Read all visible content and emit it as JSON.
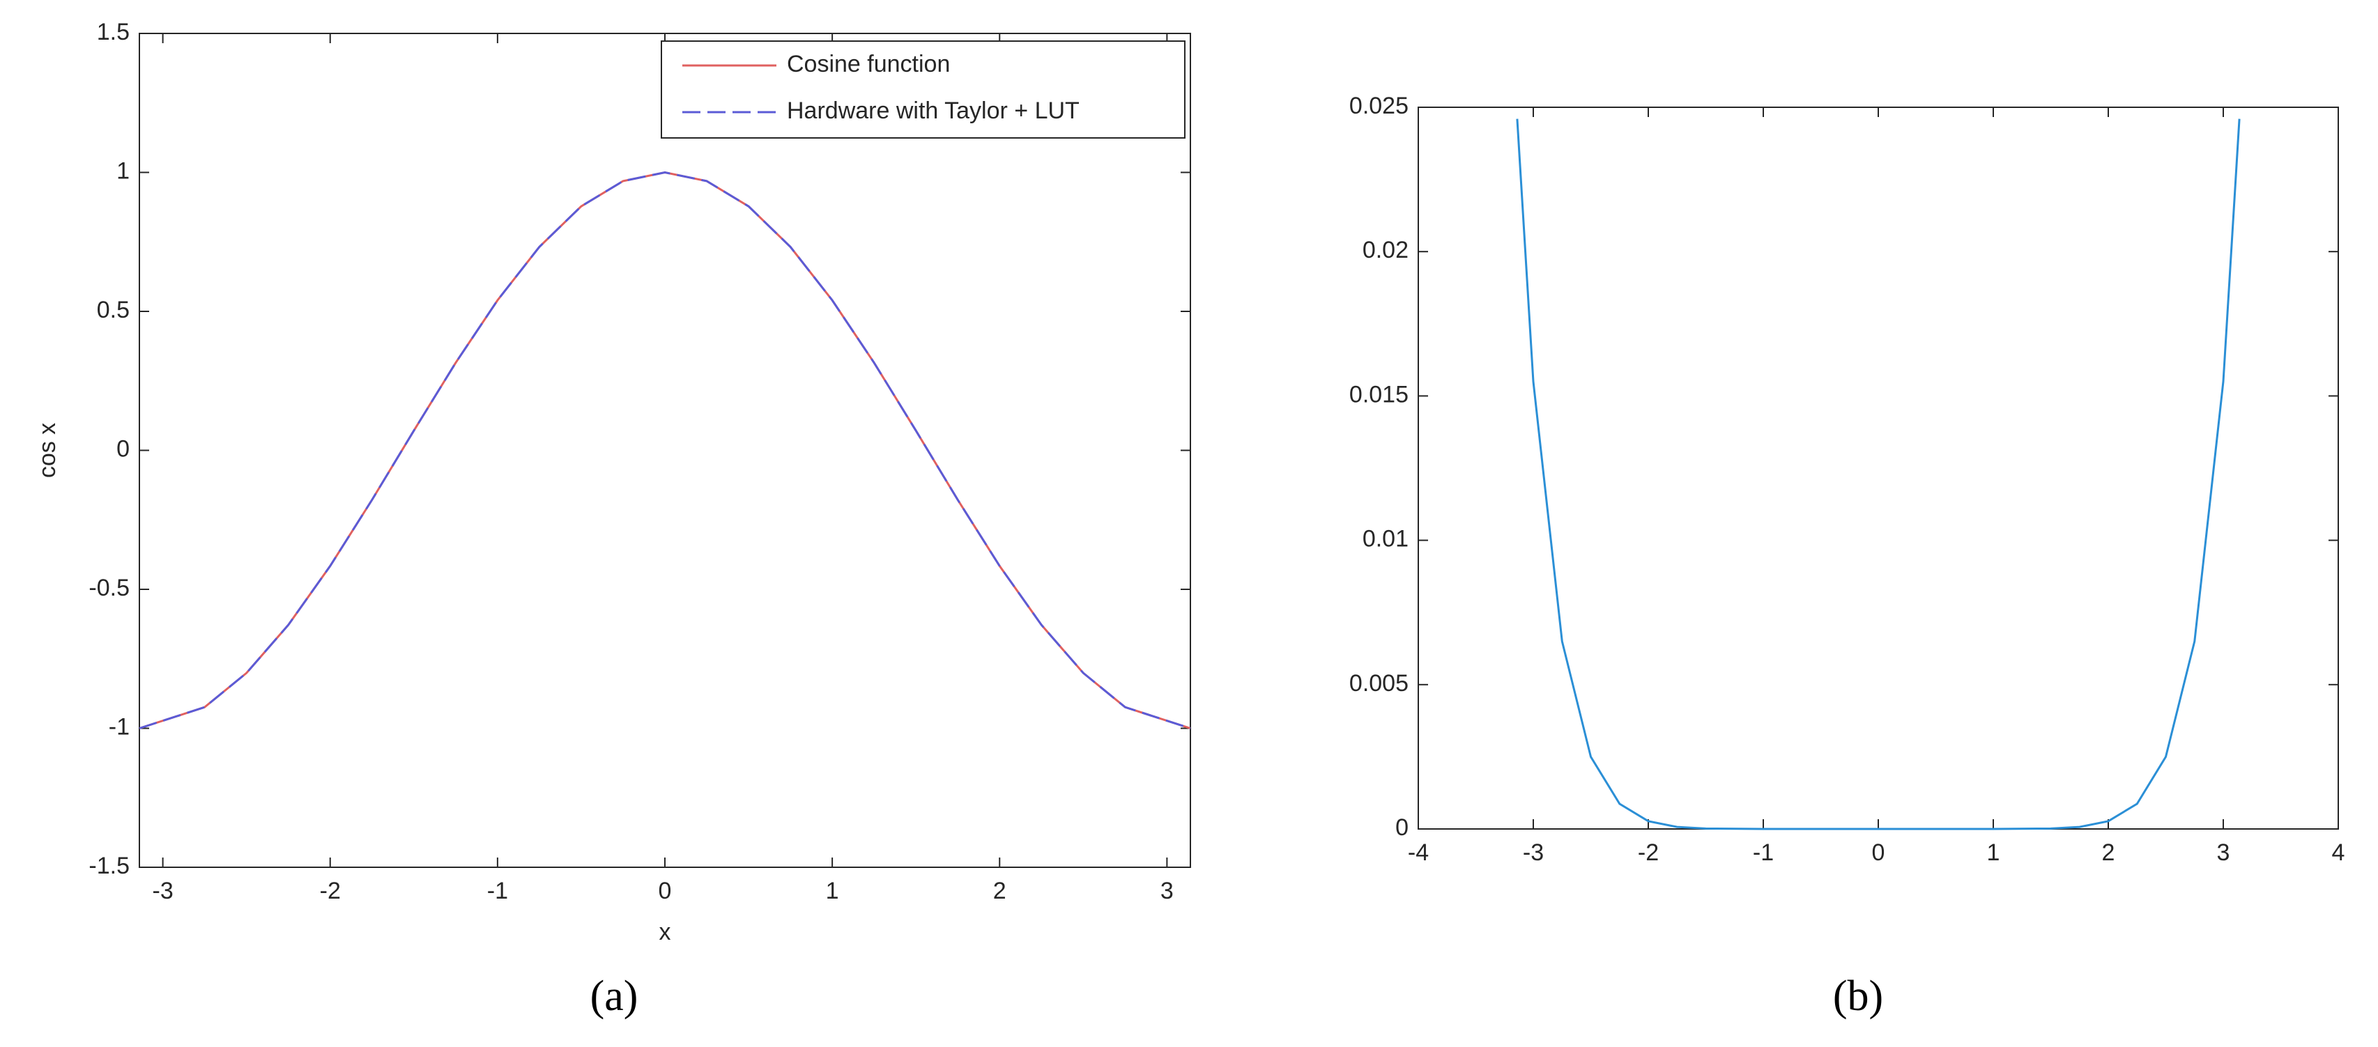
{
  "chart_data": [
    {
      "type": "line",
      "panel_label": "(a)",
      "xlabel": "x",
      "ylabel": "cos x",
      "x": [
        -3.14,
        -2.75,
        -2.5,
        -2.25,
        -2,
        -1.75,
        -1.5,
        -1.25,
        -1,
        -0.75,
        -0.5,
        -0.25,
        0,
        0.25,
        0.5,
        0.75,
        1,
        1.25,
        1.5,
        1.75,
        2,
        2.25,
        2.5,
        2.75,
        3.14
      ],
      "series": [
        {
          "name": "Cosine function",
          "color": "#e0605f",
          "line_style": "solid",
          "values": [
            -1,
            -0.924,
            -0.801,
            -0.628,
            -0.416,
            -0.178,
            0.071,
            0.315,
            0.54,
            0.732,
            0.878,
            0.969,
            1,
            0.969,
            0.878,
            0.732,
            0.54,
            0.315,
            0.071,
            -0.178,
            -0.416,
            -0.628,
            -0.801,
            -0.924,
            -1
          ]
        },
        {
          "name": "Hardware with Taylor + LUT",
          "color": "#5b5bd6",
          "line_style": "dashed",
          "values": [
            -1,
            -0.924,
            -0.801,
            -0.628,
            -0.416,
            -0.178,
            0.071,
            0.315,
            0.54,
            0.732,
            0.878,
            0.969,
            1,
            0.969,
            0.878,
            0.732,
            0.54,
            0.315,
            0.071,
            -0.178,
            -0.416,
            -0.628,
            -0.801,
            -0.924,
            -1
          ]
        }
      ],
      "xlim": [
        -3.14,
        3.14
      ],
      "xticks": [
        -3,
        -2,
        -1,
        0,
        1,
        2,
        3
      ],
      "ylim": [
        -1.5,
        1.5
      ],
      "yticks": [
        -1.5,
        -1,
        -0.5,
        0,
        0.5,
        1,
        1.5
      ],
      "legend": "upper right"
    },
    {
      "type": "line",
      "panel_label": "(b)",
      "x": [
        -3.14,
        -3,
        -2.75,
        -2.5,
        -2.25,
        -2,
        -1.75,
        -1.5,
        -1,
        -0.5,
        0,
        0.5,
        1,
        1.5,
        1.75,
        2,
        2.25,
        2.5,
        2.75,
        3,
        3.14
      ],
      "series": [
        {
          "color": "#2b8fd6",
          "line_style": "solid",
          "values": [
            0.0246,
            0.0155,
            0.0065,
            0.0025,
            0.00087,
            0.00027,
            7e-05,
            1.5e-05,
            0,
            0,
            0,
            0,
            0,
            1.5e-05,
            7e-05,
            0.00027,
            0.00087,
            0.0025,
            0.0065,
            0.0155,
            0.0246
          ]
        }
      ],
      "xlim": [
        -4,
        4
      ],
      "xticks": [
        -4,
        -3,
        -2,
        -1,
        0,
        1,
        2,
        3,
        4
      ],
      "ylim": [
        0,
        0.025
      ],
      "yticks": [
        0,
        0.005,
        0.01,
        0.015,
        0.02,
        0.025
      ]
    }
  ]
}
